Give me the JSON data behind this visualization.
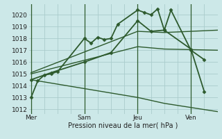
{
  "xlabel": "Pression niveau de la mer( hPa )",
  "bg_color": "#cce8e8",
  "grid_color": "#aacccc",
  "line_color": "#2d5a2d",
  "xtick_labels": [
    "Mer",
    "Sam",
    "Jeu",
    "Ven"
  ],
  "xtick_positions": [
    0,
    24,
    48,
    72
  ],
  "ytick_labels": [
    "1012",
    "1013",
    "1014",
    "1015",
    "1016",
    "1017",
    "1018",
    "1019",
    "1020"
  ],
  "ylim": [
    1011.6,
    1020.9
  ],
  "xlim": [
    -1,
    84
  ],
  "vlines": [
    0,
    24,
    48,
    72
  ],
  "vline_color": "#2d5a2d",
  "series": [
    {
      "x": [
        0,
        3,
        6,
        9,
        12,
        24,
        27,
        30,
        33,
        36,
        39,
        48,
        51,
        54,
        57,
        60,
        63,
        72,
        78
      ],
      "y": [
        1013.0,
        1014.4,
        1014.9,
        1015.0,
        1015.2,
        1018.0,
        1017.6,
        1018.1,
        1017.9,
        1018.0,
        1019.2,
        1020.4,
        1020.2,
        1020.0,
        1020.5,
        1018.7,
        1020.4,
        1017.0,
        1016.2
      ],
      "marker": "D",
      "markersize": 2.5,
      "linewidth": 1.3
    },
    {
      "x": [
        0,
        9,
        24,
        36,
        48,
        54,
        60,
        72,
        78
      ],
      "y": [
        1014.5,
        1015.1,
        1016.0,
        1016.8,
        1019.5,
        1018.6,
        1018.7,
        1017.1,
        1013.5
      ],
      "marker": "D",
      "markersize": 2.5,
      "linewidth": 1.3
    },
    {
      "x": [
        0,
        48,
        60,
        84
      ],
      "y": [
        1015.1,
        1018.6,
        1018.5,
        1018.7
      ],
      "marker": null,
      "markersize": 0,
      "linewidth": 1.0
    },
    {
      "x": [
        0,
        48,
        60,
        84
      ],
      "y": [
        1015.0,
        1017.3,
        1017.1,
        1017.0
      ],
      "marker": null,
      "markersize": 0,
      "linewidth": 1.0
    },
    {
      "x": [
        0,
        48,
        60,
        84
      ],
      "y": [
        1014.5,
        1013.0,
        1012.5,
        1011.8
      ],
      "marker": null,
      "markersize": 0,
      "linewidth": 1.0
    }
  ]
}
